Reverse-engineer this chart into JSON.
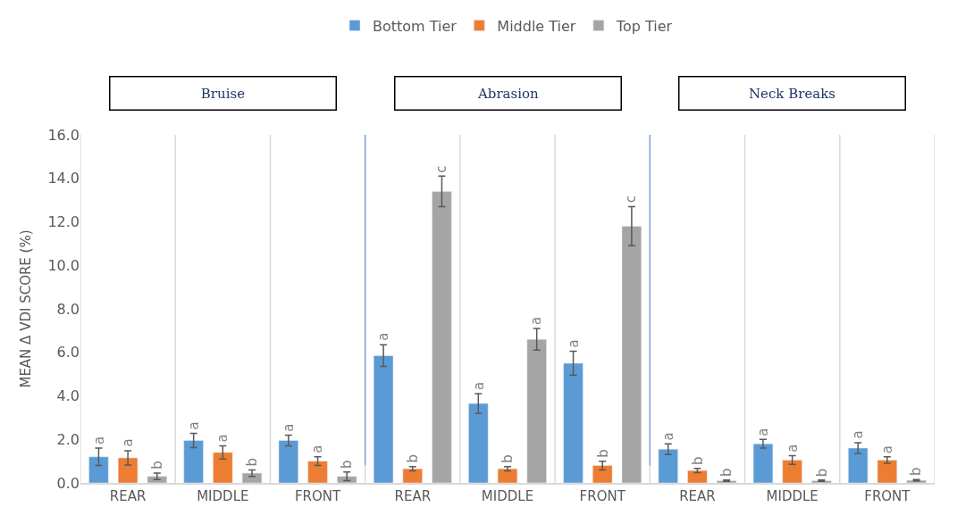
{
  "chart_data": {
    "type": "bar",
    "categories": [
      "REAR",
      "MIDDLE",
      "FRONT",
      "REAR",
      "MIDDLE",
      "FRONT",
      "REAR",
      "MIDDLE",
      "FRONT"
    ],
    "series": [
      {
        "name": "Bottom Tier",
        "color": "#5b9bd5",
        "values": [
          1.2,
          1.95,
          1.95,
          5.85,
          3.65,
          5.5,
          1.55,
          1.8,
          1.6
        ],
        "errors": [
          0.4,
          0.33,
          0.25,
          0.5,
          0.45,
          0.55,
          0.25,
          0.2,
          0.25
        ],
        "value_labels": [
          "a",
          "a",
          "a",
          "a",
          "a",
          "a",
          "a",
          "a",
          "a"
        ]
      },
      {
        "name": "Middle Tier",
        "color": "#ed7d31",
        "values": [
          1.15,
          1.4,
          1.0,
          0.65,
          0.65,
          0.8,
          0.57,
          1.05,
          1.05
        ],
        "errors": [
          0.33,
          0.3,
          0.2,
          0.1,
          0.1,
          0.2,
          0.1,
          0.2,
          0.15
        ],
        "value_labels": [
          "a",
          "a",
          "a",
          "b",
          "b",
          "b",
          "b",
          "a",
          "a"
        ]
      },
      {
        "name": "Top Tier",
        "color": "#a5a5a5",
        "values": [
          0.3,
          0.45,
          0.3,
          13.4,
          6.6,
          11.8,
          0.1,
          0.1,
          0.12
        ],
        "errors": [
          0.15,
          0.15,
          0.2,
          0.7,
          0.5,
          0.9,
          0.03,
          0.03,
          0.03
        ],
        "value_labels": [
          "b",
          "b",
          "b",
          "c",
          "a",
          "c",
          "b",
          "b",
          "b"
        ]
      }
    ],
    "ylabel": "MEAN Δ VDI SCORE (%)",
    "ylim": [
      0,
      16
    ],
    "yticks": [
      {
        "value": 0,
        "label": "0.0"
      },
      {
        "value": 2,
        "label": "2.0"
      },
      {
        "value": 4,
        "label": "4.0"
      },
      {
        "value": 6,
        "label": "6.0"
      },
      {
        "value": 8,
        "label": "8.0"
      },
      {
        "value": 10,
        "label": "10.0"
      },
      {
        "value": 12,
        "label": "12.0"
      },
      {
        "value": 14,
        "label": "14.0"
      },
      {
        "value": 16,
        "label": "16.0"
      }
    ],
    "annotations": [
      "Bruise",
      "Abrasion",
      "Neck Breaks"
    ],
    "grid": "x",
    "legend": "top"
  }
}
